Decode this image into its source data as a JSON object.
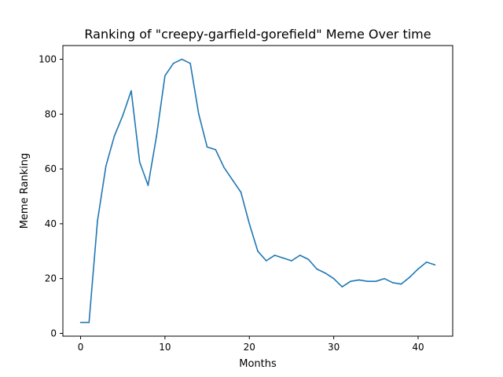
{
  "chart_data": {
    "type": "line",
    "title": "Ranking of \"creepy-garfield-gorefield\" Meme Over time",
    "xlabel": "Months",
    "ylabel": "Meme Ranking",
    "xlim": [
      -2.1,
      44.1
    ],
    "ylim": [
      -1.0,
      105.0
    ],
    "xticks": [
      0,
      10,
      20,
      30,
      40
    ],
    "yticks": [
      0,
      20,
      40,
      60,
      80,
      100
    ],
    "grid": false,
    "series": [
      {
        "color": "#1f77b4",
        "x": [
          0,
          1,
          2,
          3,
          4,
          5,
          6,
          7,
          8,
          9,
          10,
          11,
          12,
          13,
          14,
          15,
          16,
          17,
          18,
          19,
          20,
          21,
          22,
          23,
          24,
          25,
          26,
          27,
          28,
          29,
          30,
          31,
          32,
          33,
          34,
          35,
          36,
          37,
          38,
          39,
          40,
          41,
          42
        ],
        "values": [
          4,
          4,
          41,
          61,
          72,
          79.5,
          88.5,
          62.5,
          54,
          72,
          94,
          98.5,
          100,
          98.5,
          80,
          68,
          67,
          60.5,
          56,
          51.5,
          40,
          30,
          26.5,
          28.5,
          27.5,
          26.5,
          28.5,
          27,
          23.5,
          22,
          20,
          17,
          19,
          19.5,
          19,
          19,
          20,
          18.5,
          18,
          20.5,
          23.5,
          26,
          25
        ]
      }
    ]
  }
}
